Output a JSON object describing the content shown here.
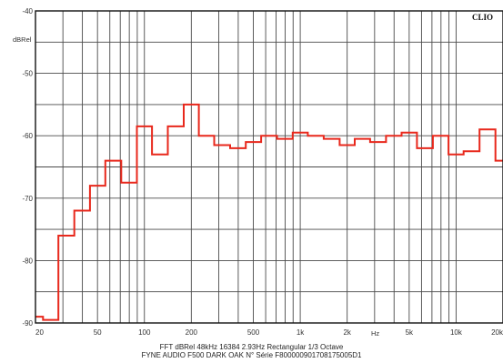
{
  "colors": {
    "curve": "#e8281c",
    "grid": "#4a4a4a",
    "frame": "#111111"
  },
  "logo": "CLIO",
  "footer": {
    "line1": "FFT  dBRel  48kHz  16384  2.93Hz  Rectangular  1/3 Octave",
    "line2": "FYNE AUDIO F500 DARK OAK N° Série F800000901708175005D1"
  },
  "chart_data": {
    "type": "line",
    "step": true,
    "title": "",
    "xlabel": "Hz",
    "ylabel": "dBRel",
    "xscale": "log",
    "xlim": [
      20,
      20000
    ],
    "ylim": [
      -90,
      -40
    ],
    "grid": true,
    "x_ticks": [
      20,
      50,
      100,
      200,
      500,
      1000,
      2000,
      5000,
      10000,
      20000
    ],
    "x_tick_labels": [
      "20",
      "50",
      "100",
      "200",
      "500",
      "1k",
      "2k",
      "5k",
      "10k",
      "20k"
    ],
    "y_ticks": [
      -40,
      -50,
      -60,
      -70,
      -80,
      -90
    ],
    "y_tick_labels": [
      "-40",
      "-50",
      "-60",
      "-70",
      "-80",
      "-90"
    ],
    "series": [
      {
        "x": [
          20,
          25,
          31.5,
          40,
          50,
          63,
          80,
          100,
          125,
          160,
          200,
          250,
          315,
          400,
          500,
          630,
          800,
          1000,
          1250,
          1600,
          2000,
          2500,
          3150,
          4000,
          5000,
          6300,
          8000,
          10000,
          12500,
          16000,
          20000
        ],
        "y": [
          -89,
          -89.5,
          -76,
          -72,
          -68,
          -64,
          -67.5,
          -58.5,
          -63,
          -58.5,
          -55,
          -60,
          -61.5,
          -62,
          -61,
          -60,
          -60.5,
          -59.5,
          -60,
          -60.5,
          -61.5,
          -60.5,
          -61,
          -60,
          -59.5,
          -62,
          -60,
          -63,
          -62.5,
          -59,
          -64
        ]
      }
    ]
  }
}
